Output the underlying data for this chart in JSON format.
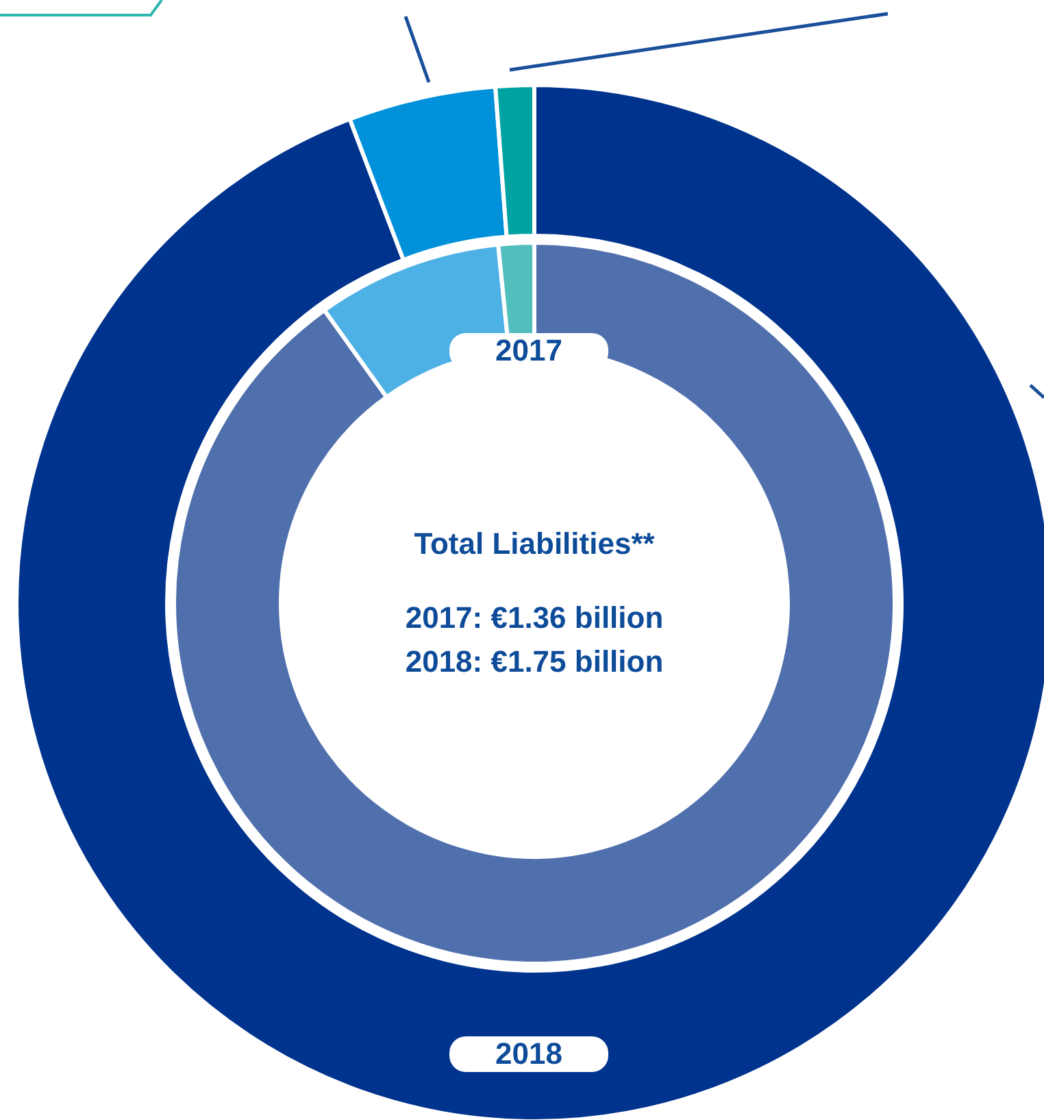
{
  "chart_data": {
    "type": "donut",
    "title": "Total Liabilities**",
    "annotations": [
      "2017: €1.36 billion",
      "2018: €1.75 billion"
    ],
    "categories": [
      null,
      null,
      null
    ],
    "series": [
      {
        "name": "2017",
        "values": [
          90.1,
          8.3,
          1.6
        ],
        "colors": [
          "#5070ad",
          "#4eb1e6",
          "#52bfbd"
        ]
      },
      {
        "name": "2018",
        "values": [
          94.2,
          4.6,
          1.2
        ],
        "colors": [
          "#00338d",
          "#0091da",
          "#00a3a1"
        ]
      }
    ],
    "legend": false
  }
}
